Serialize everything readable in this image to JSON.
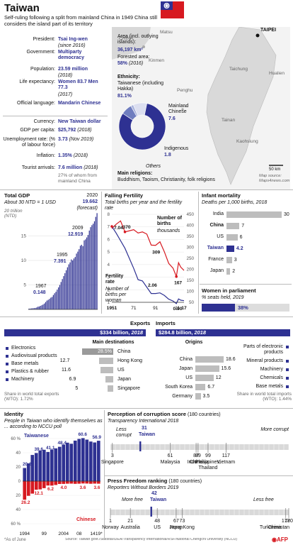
{
  "title": "Taiwan",
  "subtitle": "Self-ruling following a split from mainland China in 1949 China still considers the island part of its territory",
  "facts": [
    {
      "label": "President:",
      "value": "Tsai Ing-wen",
      "note": "(since 2016)"
    },
    {
      "label": "Government:",
      "value": "Multiparty democracy",
      "note": ""
    },
    {
      "label": "Population:",
      "value": "23.59 million",
      "note": "(2018)"
    },
    {
      "label": "Life expectancy:",
      "value": "Women 83.7 Men 77.3",
      "note": "(2017)"
    },
    {
      "label": "Official language:",
      "value": "Mandarin Chinese",
      "note": ""
    }
  ],
  "economy": [
    {
      "label": "Currency:",
      "value": "New Taiwan dollar",
      "note": ""
    },
    {
      "label": "GDP per capita:",
      "value": "$25,792",
      "note": "(2018)"
    },
    {
      "label": "Unemployment rate: (% of labour force)",
      "value": "3.73",
      "note": "(Nov 2019)"
    },
    {
      "label": "Inflation:",
      "value": "1.35%",
      "note": "(2018)"
    },
    {
      "label": "Tourist arrivals:",
      "value": "7.6 million",
      "note": "(2018)"
    }
  ],
  "tourist_note": "27% of whom from mainland China",
  "area": {
    "label": "Area (incl. outlying islands):",
    "value": "36,197 km²",
    "forest_label": "Forested area:",
    "forest_value": "58%",
    "forest_note": "(2016)"
  },
  "ethnicity": {
    "title": "Ethnicity:",
    "segments": [
      {
        "label": "Taiwanese (including Hakka)",
        "value": 81.1,
        "display": "81.1%",
        "color": "#2e3192"
      },
      {
        "label": "Mainland Chinese",
        "value": 7.6,
        "display": "7.6",
        "color": "#6f7dbf"
      },
      {
        "label": "Indigenous",
        "value": 1.8,
        "display": "1.8",
        "color": "#a9b2dc"
      },
      {
        "label": "Others",
        "value": 9.5,
        "display": "",
        "color": "#dcdff0"
      }
    ]
  },
  "religions": {
    "title": "Main religions:",
    "value": "Buddhism, Taoism, Christianity, folk religions"
  },
  "map": {
    "labels": [
      "CHINA",
      "Kinmen",
      "Matsu",
      "Penghu",
      "Taichung",
      "Hualien",
      "Tainan",
      "Kaohsiung",
      "TAIPEI"
    ],
    "scale": "50 km",
    "source": "Map source: Maps4news.com"
  },
  "gdp_chart": {
    "title": "Total GDP",
    "subtitle": "About 30 NTD = 1 USD",
    "unit_label": "20 trillion (NTD)",
    "ticks": [
      "15",
      "10",
      "5"
    ],
    "labels": [
      {
        "year": "1967",
        "value": "0.148"
      },
      {
        "year": "1995",
        "value": "7.391"
      },
      {
        "year": "2009",
        "value": "12.919"
      },
      {
        "year": "2020",
        "value": "19.662",
        "note": "(forecast)"
      }
    ]
  },
  "fertility_chart": {
    "title": "Falling Fertility",
    "subtitle": "Total births per year and the fertility rate",
    "left_ticks": [
      "8",
      "7",
      "6",
      "5",
      "4",
      "3",
      "2",
      "1"
    ],
    "right_ticks": [
      "450",
      "400",
      "350",
      "300",
      "250",
      "200",
      "150",
      "100",
      "50"
    ],
    "x_ticks": [
      "1951",
      "71",
      "91",
      "11",
      "17"
    ],
    "births_label": "Number of births",
    "births_unit": "thousands",
    "rate_label": "Fertility rate",
    "rate_note": "Number of births per woman",
    "annotations": [
      "7.04",
      "370",
      "309",
      "2.06",
      "167",
      "0.90"
    ]
  },
  "infant": {
    "title": "Infant mortality",
    "subtitle": "Deaths per 1,000 births, 2018",
    "rows": [
      {
        "country": "India",
        "value": 30
      },
      {
        "country": "China",
        "value": 7
      },
      {
        "country": "US",
        "value": 6
      },
      {
        "country": "Taiwan",
        "value": 4.2
      },
      {
        "country": "France",
        "value": 3
      },
      {
        "country": "Japan",
        "value": 2
      }
    ]
  },
  "women": {
    "title": "Women in parliament",
    "subtitle": "% seats held, 2019",
    "value": 38,
    "display": "38%"
  },
  "exports": {
    "title": "Exports",
    "total": "$334 billion,",
    "year": "2018",
    "products": [
      "Electronics",
      "Audiovisual products",
      "Base metals",
      "Plastics & rubber",
      "Machinery"
    ],
    "share": "Share in world total exports (WTO): 1.72%",
    "dest_title": "Main destinations",
    "destinations": [
      {
        "value": 28.5,
        "display": "28.5%",
        "name": "China"
      },
      {
        "value": 12.7,
        "display": "12.7",
        "name": "Hong Kong"
      },
      {
        "value": 11.6,
        "display": "11.6",
        "name": "US"
      },
      {
        "value": 6.9,
        "display": "6.9",
        "name": "Japan"
      },
      {
        "value": 5,
        "display": "5",
        "name": "Singapore"
      }
    ]
  },
  "imports": {
    "title": "Imports",
    "total": "$284.8 billion,",
    "year": "2018",
    "products": [
      "Parts of electronic products",
      "Mineral products",
      "Machinery",
      "Chemicals",
      "Base metals"
    ],
    "share": "Share in world total imports (WTO): 1.44%",
    "origins_title": "Origins",
    "origins": [
      {
        "name": "China",
        "value": 18.6,
        "display": "18.6"
      },
      {
        "name": "Japan",
        "value": 15.6,
        "display": "15.6"
      },
      {
        "name": "US",
        "value": 12,
        "display": "12"
      },
      {
        "name": "South Korea",
        "value": 6.7,
        "display": "6.7"
      },
      {
        "name": "Germany",
        "value": 3.5,
        "display": "3.5"
      }
    ]
  },
  "identity": {
    "title": "Identity",
    "subtitle": "People in Taiwan who identify themselves as ... according to NCCU poll",
    "y_ticks": [
      "60 %",
      "40",
      "20",
      "0",
      "20",
      "40",
      "60 %"
    ],
    "taiwanese_label": "Taiwanese",
    "chinese_label": "Chinese",
    "taiwanese_values": [
      "20.2",
      "39.6",
      "41.1",
      "48.4",
      "60.6",
      "56.9"
    ],
    "chinese_values": [
      "26.2",
      "12.1",
      "6.2",
      "4.0",
      "3.6",
      "3.6"
    ],
    "x_ticks": [
      "1994",
      "99",
      "2004",
      "08",
      "14",
      "19*"
    ]
  },
  "corruption": {
    "title": "Perception of corruption score",
    "title_note": "(180 countries)",
    "subtitle": "Transparency International 2018",
    "less": "Less corrupt",
    "more": "More corrupt",
    "taiwan_rank": "31",
    "taiwan_label": "Taiwan",
    "ranks": [
      {
        "rank": "3",
        "name": "Singapore"
      },
      {
        "rank": "61",
        "name": "Malaysia"
      },
      {
        "rank": "87",
        "name": "China"
      },
      {
        "rank": "89",
        "name": "Indonesia"
      },
      {
        "rank": "99",
        "name": "Philippines, Thailand"
      },
      {
        "rank": "117",
        "name": "Vietnam"
      }
    ]
  },
  "press": {
    "title": "Press Freedom ranking",
    "title_note": "(180 countries)",
    "subtitle": "Reporters Without Borders 2019",
    "more": "More free",
    "less": "Less free",
    "taiwan_rank": "42",
    "taiwan_label": "Taiwan",
    "ranks": [
      {
        "rank": "1",
        "name": "Norway"
      },
      {
        "rank": "21",
        "name": "Australia"
      },
      {
        "rank": "48",
        "name": "US"
      },
      {
        "rank": "67",
        "name": "Japan"
      },
      {
        "rank": "73",
        "name": "Hong Kong"
      },
      {
        "rank": "177",
        "name": "China"
      },
      {
        "rank": "180",
        "name": "Turkmenistan"
      }
    ]
  },
  "footnote": "*As of June",
  "source": "Source: Taiwan govt./Statista/IDEA/Transparency International/RSF/National Chengchi University (NCCU)",
  "logo": "AFP",
  "chart_data": [
    {
      "type": "bar",
      "title": "Total GDP",
      "ylabel": "trillion (NTD)",
      "ylim": [
        0,
        20
      ],
      "x": [
        1967,
        1968,
        1969,
        1970,
        1971,
        1972,
        1973,
        1974,
        1975,
        1976,
        1977,
        1978,
        1979,
        1980,
        1981,
        1982,
        1983,
        1984,
        1985,
        1986,
        1987,
        1988,
        1989,
        1990,
        1991,
        1992,
        1993,
        1994,
        1995,
        1996,
        1997,
        1998,
        1999,
        2000,
        2001,
        2002,
        2003,
        2004,
        2005,
        2006,
        2007,
        2008,
        2009,
        2010,
        2011,
        2012,
        2013,
        2014,
        2015,
        2016,
        2017,
        2018,
        2019,
        2020
      ],
      "values": [
        0.148,
        0.17,
        0.2,
        0.23,
        0.26,
        0.3,
        0.4,
        0.55,
        0.6,
        0.72,
        0.85,
        1.0,
        1.2,
        1.5,
        1.8,
        1.95,
        2.15,
        2.4,
        2.55,
        2.95,
        3.3,
        3.6,
        4.05,
        4.5,
        5.0,
        5.6,
        6.2,
        6.8,
        7.391,
        8.0,
        8.6,
        9.2,
        9.6,
        10.2,
        10.0,
        10.4,
        10.7,
        11.4,
        11.8,
        12.3,
        13.0,
        13.2,
        12.919,
        14.1,
        14.3,
        14.7,
        15.2,
        16.1,
        16.8,
        17.2,
        17.5,
        18.0,
        18.9,
        19.662
      ]
    },
    {
      "type": "line",
      "title": "Falling Fertility",
      "x_ticks": [
        "1951",
        "71",
        "91",
        "11",
        "17"
      ],
      "series": [
        {
          "name": "Number of births",
          "unit": "thousands",
          "x": [
            1951,
            1955,
            1959,
            1963,
            1967,
            1971,
            1975,
            1979,
            1983,
            1987,
            1991,
            1995,
            1999,
            2003,
            2007,
            2010,
            2012,
            2014,
            2017
          ],
          "values": [
            385,
            405,
            420,
            370,
            375,
            380,
            365,
            370,
            360,
            310,
            309,
            325,
            280,
            227,
            205,
            167,
            230,
            210,
            195
          ]
        },
        {
          "name": "Fertility rate",
          "x": [
            1951,
            1955,
            1959,
            1963,
            1967,
            1971,
            1975,
            1979,
            1983,
            1987,
            1991,
            1995,
            1999,
            2003,
            2007,
            2010,
            2012,
            2014,
            2017
          ],
          "values": [
            7.04,
            6.5,
            5.9,
            5.3,
            4.5,
            3.7,
            2.8,
            2.7,
            2.2,
            1.7,
            1.7,
            1.75,
            1.55,
            1.25,
            1.1,
            0.9,
            1.27,
            1.17,
            1.13
          ]
        }
      ]
    },
    {
      "type": "bar",
      "title": "Infant mortality",
      "categories": [
        "India",
        "China",
        "US",
        "Taiwan",
        "France",
        "Japan"
      ],
      "values": [
        30,
        7,
        6,
        4.2,
        3,
        2
      ]
    },
    {
      "type": "bar",
      "title": "Identity",
      "x": [
        "1994",
        "99",
        "2004",
        "08",
        "14",
        "19*"
      ],
      "series": [
        {
          "name": "Taiwanese",
          "values": [
            20.2,
            39.6,
            41.1,
            48.4,
            60.6,
            56.9
          ]
        },
        {
          "name": "Chinese",
          "values": [
            26.2,
            12.1,
            6.2,
            4.0,
            3.6,
            3.6
          ]
        }
      ]
    }
  ]
}
